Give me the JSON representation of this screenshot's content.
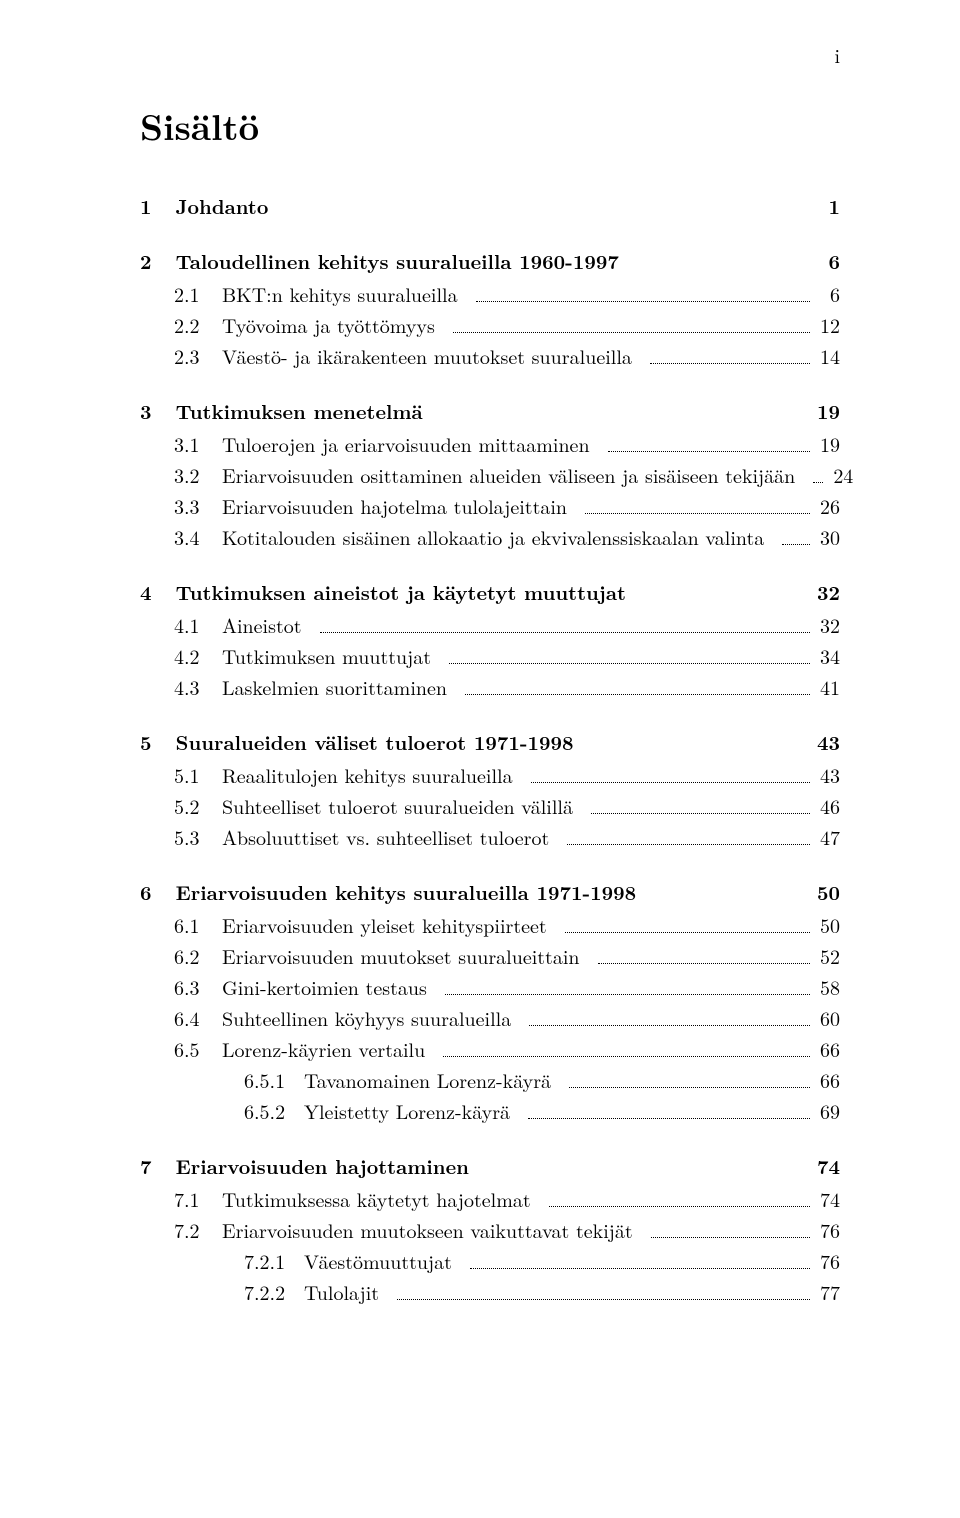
{
  "page_marker": "i",
  "title": "Sisältö",
  "entries": [
    {
      "type": "chapter",
      "num": "1",
      "title": "Johdanto",
      "page": "1"
    },
    {
      "type": "chapter",
      "num": "2",
      "title": "Taloudellinen kehitys suuralueilla 1960-1997",
      "page": "6"
    },
    {
      "type": "section",
      "num": "2.1",
      "title": "BKT:n kehitys suuralueilla",
      "page": "6"
    },
    {
      "type": "section",
      "num": "2.2",
      "title": "Työvoima ja työttömyys",
      "page": "12"
    },
    {
      "type": "section",
      "num": "2.3",
      "title": "Väestö- ja ikärakenteen muutokset suuralueilla",
      "page": "14"
    },
    {
      "type": "chapter",
      "num": "3",
      "title": "Tutkimuksen menetelmä",
      "page": "19"
    },
    {
      "type": "section",
      "num": "3.1",
      "title": "Tuloerojen ja eriarvoisuuden mittaaminen",
      "page": "19"
    },
    {
      "type": "section",
      "num": "3.2",
      "title": "Eriarvoisuuden osittaminen alueiden väliseen ja sisäiseen tekijään",
      "page": "24"
    },
    {
      "type": "section",
      "num": "3.3",
      "title": "Eriarvoisuuden hajotelma tulolajeittain",
      "page": "26"
    },
    {
      "type": "section",
      "num": "3.4",
      "title": "Kotitalouden sisäinen allokaatio ja ekvivalenssiskaalan valinta",
      "page": "30"
    },
    {
      "type": "chapter",
      "num": "4",
      "title": "Tutkimuksen aineistot ja käytetyt muuttujat",
      "page": "32"
    },
    {
      "type": "section",
      "num": "4.1",
      "title": "Aineistot",
      "page": "32"
    },
    {
      "type": "section",
      "num": "4.2",
      "title": "Tutkimuksen muuttujat",
      "page": "34"
    },
    {
      "type": "section",
      "num": "4.3",
      "title": "Laskelmien suorittaminen",
      "page": "41"
    },
    {
      "type": "chapter",
      "num": "5",
      "title": "Suuralueiden väliset tuloerot 1971-1998",
      "page": "43"
    },
    {
      "type": "section",
      "num": "5.1",
      "title": "Reaalitulojen kehitys suuralueilla",
      "page": "43"
    },
    {
      "type": "section",
      "num": "5.2",
      "title": "Suhteelliset tuloerot suuralueiden välillä",
      "page": "46"
    },
    {
      "type": "section",
      "num": "5.3",
      "title": "Absoluuttiset vs. suhteelliset tuloerot",
      "page": "47"
    },
    {
      "type": "chapter",
      "num": "6",
      "title": "Eriarvoisuuden kehitys suuralueilla 1971-1998",
      "page": "50"
    },
    {
      "type": "section",
      "num": "6.1",
      "title": "Eriarvoisuuden yleiset kehityspiirteet",
      "page": "50"
    },
    {
      "type": "section",
      "num": "6.2",
      "title": "Eriarvoisuuden muutokset suuralueittain",
      "page": "52"
    },
    {
      "type": "section",
      "num": "6.3",
      "title": "Gini-kertoimien testaus",
      "page": "58"
    },
    {
      "type": "section",
      "num": "6.4",
      "title": "Suhteellinen köyhyys suuralueilla",
      "page": "60"
    },
    {
      "type": "section",
      "num": "6.5",
      "title": "Lorenz-käyrien vertailu",
      "page": "66"
    },
    {
      "type": "subsection",
      "num": "6.5.1",
      "title": "Tavanomainen Lorenz-käyrä",
      "page": "66"
    },
    {
      "type": "subsection",
      "num": "6.5.2",
      "title": "Yleistetty Lorenz-käyrä",
      "page": "69"
    },
    {
      "type": "chapter",
      "num": "7",
      "title": "Eriarvoisuuden hajottaminen",
      "page": "74"
    },
    {
      "type": "section",
      "num": "7.1",
      "title": "Tutkimuksessa käytetyt hajotelmat",
      "page": "74"
    },
    {
      "type": "section",
      "num": "7.2",
      "title": "Eriarvoisuuden muutokseen vaikuttavat tekijät",
      "page": "76"
    },
    {
      "type": "subsection",
      "num": "7.2.1",
      "title": "Väestömuuttujat",
      "page": "76"
    },
    {
      "type": "subsection",
      "num": "7.2.2",
      "title": "Tulolajit",
      "page": "77"
    }
  ]
}
